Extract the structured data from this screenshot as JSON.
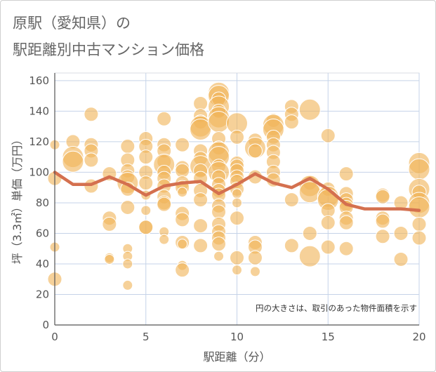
{
  "title_line1": "原駅（愛知県）の",
  "title_line2": "駅距離別中古マンション価格",
  "chart_data": {
    "type": "scatter",
    "xlabel": "駅距離（分）",
    "ylabel": "坪（3.3㎡）単価（万円）",
    "xlim": [
      0,
      20
    ],
    "ylim": [
      0,
      165
    ],
    "xticks": [
      0,
      5,
      10,
      15,
      20
    ],
    "yticks": [
      0,
      20,
      40,
      60,
      80,
      100,
      120,
      140,
      160
    ],
    "grid": true,
    "annotation": "円の大きさは、取引のあった物件面積を示す",
    "colors": {
      "bubble": "#f0b55a",
      "line": "#d4704f",
      "grid": "#c5d3e8"
    },
    "scatter_points": [
      [
        0,
        118,
        1
      ],
      [
        0,
        96,
        2
      ],
      [
        0,
        51,
        1
      ],
      [
        0,
        30,
        2
      ],
      [
        1,
        120,
        2
      ],
      [
        1,
        110,
        3
      ],
      [
        1,
        107,
        3
      ],
      [
        2,
        138,
        2
      ],
      [
        2,
        118,
        2
      ],
      [
        2,
        114,
        2
      ],
      [
        2,
        108,
        2
      ],
      [
        2,
        91,
        2
      ],
      [
        3,
        99,
        2
      ],
      [
        3,
        70,
        2
      ],
      [
        3,
        66,
        2
      ],
      [
        3,
        44,
        1
      ],
      [
        3,
        43,
        1
      ],
      [
        4,
        117,
        2
      ],
      [
        4,
        108,
        2
      ],
      [
        4,
        101,
        2
      ],
      [
        4,
        97,
        2
      ],
      [
        4,
        93,
        3
      ],
      [
        4,
        89,
        2
      ],
      [
        4,
        77,
        2
      ],
      [
        4,
        50,
        1
      ],
      [
        4,
        45,
        1
      ],
      [
        4,
        40,
        1
      ],
      [
        4,
        26,
        1
      ],
      [
        5,
        122,
        2
      ],
      [
        5,
        117,
        2
      ],
      [
        5,
        110,
        2
      ],
      [
        5,
        100,
        2
      ],
      [
        5,
        93,
        2
      ],
      [
        5,
        85,
        1
      ],
      [
        5,
        75,
        1
      ],
      [
        5,
        64,
        2
      ],
      [
        5,
        64,
        2
      ],
      [
        6,
        135,
        2
      ],
      [
        6,
        118,
        2
      ],
      [
        6,
        114,
        2
      ],
      [
        6,
        107,
        2
      ],
      [
        6,
        105,
        3
      ],
      [
        6,
        100,
        2
      ],
      [
        6,
        96,
        2
      ],
      [
        6,
        91,
        2
      ],
      [
        6,
        84,
        2
      ],
      [
        6,
        80,
        2
      ],
      [
        6,
        79,
        2
      ],
      [
        6,
        61,
        1
      ],
      [
        6,
        56,
        1
      ],
      [
        7,
        118,
        2
      ],
      [
        7,
        103,
        2
      ],
      [
        7,
        101,
        2
      ],
      [
        7,
        93,
        2
      ],
      [
        7,
        90,
        2
      ],
      [
        7,
        87,
        1
      ],
      [
        7,
        73,
        2
      ],
      [
        7,
        69,
        2
      ],
      [
        7,
        54,
        2
      ],
      [
        7,
        53,
        1
      ],
      [
        7,
        39,
        1
      ],
      [
        7,
        36,
        2
      ],
      [
        8,
        145,
        2
      ],
      [
        8,
        137,
        2
      ],
      [
        8,
        133,
        2
      ],
      [
        8,
        130,
        3
      ],
      [
        8,
        128,
        3
      ],
      [
        8,
        114,
        2
      ],
      [
        8,
        109,
        2
      ],
      [
        8,
        104,
        3
      ],
      [
        8,
        101,
        2
      ],
      [
        8,
        96,
        2
      ],
      [
        8,
        88,
        2
      ],
      [
        8,
        82,
        2
      ],
      [
        8,
        65,
        2
      ],
      [
        8,
        52,
        2
      ],
      [
        9,
        152,
        3
      ],
      [
        9,
        150,
        3
      ],
      [
        9,
        148,
        2
      ],
      [
        9,
        143,
        3
      ],
      [
        9,
        140,
        2
      ],
      [
        9,
        136,
        3
      ],
      [
        9,
        133,
        3
      ],
      [
        9,
        122,
        2
      ],
      [
        9,
        116,
        2
      ],
      [
        9,
        113,
        3
      ],
      [
        9,
        110,
        3
      ],
      [
        9,
        104,
        2
      ],
      [
        9,
        100,
        3
      ],
      [
        9,
        97,
        2
      ],
      [
        9,
        92,
        2
      ],
      [
        9,
        88,
        2
      ],
      [
        9,
        85,
        2
      ],
      [
        9,
        78,
        2
      ],
      [
        9,
        74,
        2
      ],
      [
        9,
        66,
        2
      ],
      [
        9,
        61,
        2
      ],
      [
        9,
        57,
        2
      ],
      [
        9,
        53,
        2
      ],
      [
        9,
        45,
        1
      ],
      [
        10,
        132,
        3
      ],
      [
        10,
        123,
        2
      ],
      [
        10,
        106,
        2
      ],
      [
        10,
        104,
        2
      ],
      [
        10,
        101,
        2
      ],
      [
        10,
        97,
        2
      ],
      [
        10,
        94,
        2
      ],
      [
        10,
        89,
        2
      ],
      [
        10,
        86,
        1
      ],
      [
        10,
        80,
        1
      ],
      [
        10,
        70,
        2
      ],
      [
        10,
        44,
        2
      ],
      [
        10,
        36,
        1
      ],
      [
        11,
        121,
        2
      ],
      [
        11,
        116,
        3
      ],
      [
        11,
        114,
        2
      ],
      [
        11,
        97,
        2
      ],
      [
        11,
        54,
        2
      ],
      [
        11,
        51,
        2
      ],
      [
        11,
        44,
        2
      ],
      [
        11,
        35,
        1
      ],
      [
        12,
        134,
        2
      ],
      [
        12,
        131,
        3
      ],
      [
        12,
        128,
        3
      ],
      [
        12,
        123,
        2
      ],
      [
        12,
        118,
        2
      ],
      [
        12,
        113,
        2
      ],
      [
        12,
        107,
        2
      ],
      [
        12,
        100,
        2
      ],
      [
        12,
        95,
        2
      ],
      [
        13,
        143,
        2
      ],
      [
        13,
        138,
        2
      ],
      [
        13,
        133,
        2
      ],
      [
        13,
        82,
        2
      ],
      [
        13,
        52,
        2
      ],
      [
        14,
        141,
        3
      ],
      [
        14,
        93,
        2
      ],
      [
        14,
        91,
        3
      ],
      [
        14,
        87,
        3
      ],
      [
        14,
        60,
        2
      ],
      [
        14,
        45,
        3
      ],
      [
        15,
        124,
        2
      ],
      [
        15,
        89,
        2
      ],
      [
        15,
        84,
        3
      ],
      [
        15,
        82,
        3
      ],
      [
        15,
        75,
        2
      ],
      [
        15,
        67,
        2
      ],
      [
        15,
        51,
        2
      ],
      [
        16,
        99,
        2
      ],
      [
        16,
        86,
        2
      ],
      [
        16,
        82,
        2
      ],
      [
        16,
        79,
        2
      ],
      [
        16,
        77,
        2
      ],
      [
        16,
        70,
        2
      ],
      [
        16,
        67,
        2
      ],
      [
        16,
        50,
        2
      ],
      [
        18,
        85,
        2
      ],
      [
        18,
        84,
        2
      ],
      [
        18,
        70,
        2
      ],
      [
        18,
        68,
        2
      ],
      [
        18,
        58,
        2
      ],
      [
        19,
        80,
        2
      ],
      [
        19,
        60,
        2
      ],
      [
        19,
        43,
        2
      ],
      [
        20,
        106,
        3
      ],
      [
        20,
        102,
        3
      ],
      [
        20,
        89,
        3
      ],
      [
        20,
        87,
        2
      ],
      [
        20,
        80,
        3
      ],
      [
        20,
        77,
        3
      ],
      [
        20,
        66,
        2
      ],
      [
        20,
        57,
        2
      ]
    ],
    "trend_line": [
      [
        0,
        100
      ],
      [
        1,
        92
      ],
      [
        2,
        92
      ],
      [
        3,
        97
      ],
      [
        4,
        92
      ],
      [
        5,
        85
      ],
      [
        6,
        91
      ],
      [
        7,
        93
      ],
      [
        8,
        94
      ],
      [
        9,
        86
      ],
      [
        10,
        92
      ],
      [
        11,
        99
      ],
      [
        12,
        93
      ],
      [
        13,
        90
      ],
      [
        14,
        96
      ],
      [
        15,
        89
      ],
      [
        16,
        79
      ],
      [
        17,
        76
      ],
      [
        18,
        76
      ],
      [
        19,
        76
      ],
      [
        20,
        75
      ]
    ]
  }
}
